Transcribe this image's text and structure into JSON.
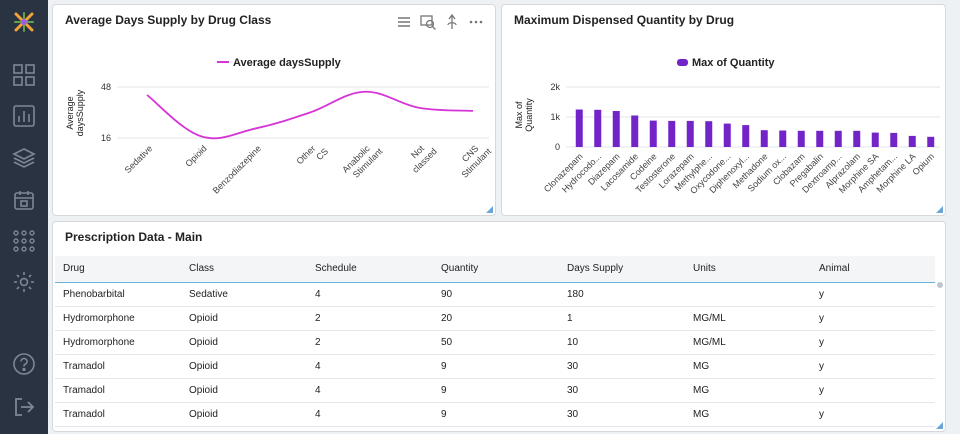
{
  "colors": {
    "line_series": "#d634d6",
    "bar_series": "#7324c8",
    "sidebar_bg": "#2a3342"
  },
  "sidebar": {
    "items": [
      {
        "icon": "logo-icon"
      },
      {
        "icon": "dashboard-grid-icon"
      },
      {
        "icon": "bar-chart-icon"
      },
      {
        "icon": "layers-icon"
      },
      {
        "icon": "calendar-icon"
      },
      {
        "icon": "network-icon"
      },
      {
        "icon": "settings-gear-icon"
      },
      {
        "icon": "help-icon"
      },
      {
        "icon": "logout-icon"
      }
    ]
  },
  "panel1": {
    "title": "Average Days Supply by Drug Class"
  },
  "panel2": {
    "title": "Maximum Dispensed Quantity by Drug"
  },
  "panel3": {
    "title": "Prescription Data - Main"
  },
  "chart_data": [
    {
      "type": "line",
      "title": "Average Days Supply by Drug Class",
      "legend": "Average daysSupply",
      "ylabel": "Average daysSupply",
      "ylim": [
        16,
        48
      ],
      "yticks": [
        "48",
        "16"
      ],
      "categories": [
        "Sedative",
        "Opioid",
        "Benzodiazepine",
        "Other CS",
        "Anabolic Stimulant",
        "Not classed",
        "CNS Stimulant"
      ],
      "values": [
        43,
        17,
        22,
        32,
        45,
        35,
        33
      ]
    },
    {
      "type": "bar",
      "title": "Maximum Dispensed Quantity by Drug",
      "legend": "Max of Quantity",
      "ylabel": "Max of Quantity",
      "ylim": [
        0,
        2000
      ],
      "yticks": [
        "2k",
        "1k",
        "0"
      ],
      "categories": [
        "Clonazepam",
        "Hydrocodo...",
        "Diazepam",
        "Lacosamide",
        "Codeine",
        "Testosterone",
        "Lorazepam",
        "Methylphe...",
        "Oxycodone...",
        "Diphenoxyl...",
        "Methadone",
        "Sodium ox...",
        "Clobazam",
        "Pregabalin",
        "Dextroamp...",
        "Alprazolam",
        "Morphine SA",
        "Amphetam...",
        "Morphine LA",
        "Opium"
      ],
      "values": [
        1250,
        1240,
        1200,
        1050,
        880,
        870,
        870,
        860,
        780,
        730,
        560,
        550,
        540,
        540,
        540,
        540,
        480,
        470,
        370,
        340
      ]
    }
  ],
  "table": {
    "columns": [
      "Drug",
      "Class",
      "Schedule",
      "Quantity",
      "Days Supply",
      "Units",
      "Animal"
    ],
    "rows": [
      [
        "Phenobarbital",
        "Sedative",
        "4",
        "90",
        "180",
        "",
        "y"
      ],
      [
        "Hydromorphone",
        "Opioid",
        "2",
        "20",
        "1",
        "MG/ML",
        "y"
      ],
      [
        "Hydromorphone",
        "Opioid",
        "2",
        "50",
        "10",
        "MG/ML",
        "y"
      ],
      [
        "Tramadol",
        "Opioid",
        "4",
        "9",
        "30",
        "MG",
        "y"
      ],
      [
        "Tramadol",
        "Opioid",
        "4",
        "9",
        "30",
        "MG",
        "y"
      ],
      [
        "Tramadol",
        "Opioid",
        "4",
        "9",
        "30",
        "MG",
        "y"
      ]
    ]
  }
}
